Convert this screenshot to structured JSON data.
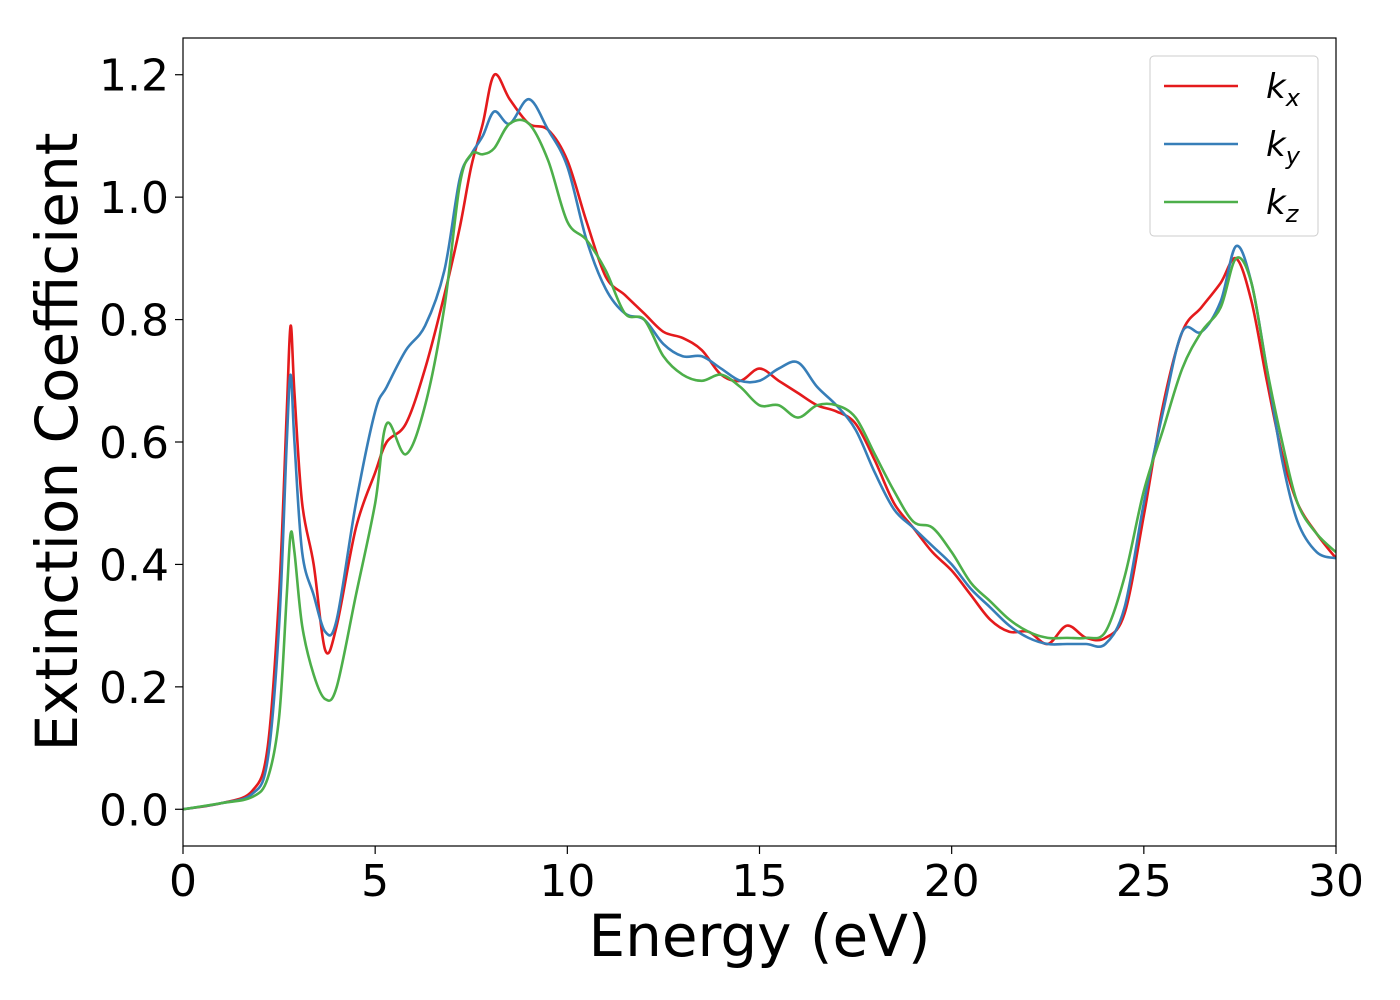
{
  "chart_data": {
    "type": "line",
    "xlabel": "Energy (eV)",
    "ylabel": "Extinction Coefficient",
    "xlim": [
      0,
      30
    ],
    "ylim": [
      -0.06,
      1.26
    ],
    "xticks": [
      "0",
      "5",
      "10",
      "15",
      "20",
      "25",
      "30"
    ],
    "yticks": [
      "0.0",
      "0.2",
      "0.4",
      "0.6",
      "0.8",
      "1.0",
      "1.2"
    ],
    "grid": false,
    "legend_position": "top-right",
    "series": [
      {
        "name": "k_x",
        "label_main": "k",
        "label_sub": "x",
        "color": "#e41a1c",
        "x": [
          0,
          1,
          1.8,
          2.2,
          2.5,
          2.7,
          2.8,
          2.9,
          3.1,
          3.4,
          3.7,
          4.0,
          4.5,
          5.0,
          5.3,
          5.8,
          6.3,
          6.8,
          7.2,
          7.5,
          7.8,
          8.1,
          8.5,
          9.0,
          9.5,
          10.0,
          10.5,
          11.0,
          11.5,
          12.0,
          12.5,
          13.0,
          13.5,
          14.0,
          14.5,
          15.0,
          15.5,
          16.0,
          16.5,
          17.0,
          17.5,
          18.0,
          18.5,
          19.0,
          19.5,
          20.0,
          20.5,
          21.0,
          21.5,
          22.0,
          22.5,
          23.0,
          23.5,
          24.0,
          24.5,
          25.0,
          25.5,
          26.0,
          26.5,
          27.0,
          27.4,
          27.8,
          28.2,
          28.6,
          29.0,
          29.5,
          30.0
        ],
        "y": [
          0.0,
          0.01,
          0.03,
          0.1,
          0.35,
          0.65,
          0.79,
          0.68,
          0.5,
          0.4,
          0.26,
          0.3,
          0.46,
          0.55,
          0.6,
          0.63,
          0.72,
          0.84,
          0.95,
          1.05,
          1.12,
          1.2,
          1.16,
          1.12,
          1.11,
          1.06,
          0.96,
          0.87,
          0.84,
          0.81,
          0.78,
          0.77,
          0.75,
          0.71,
          0.7,
          0.72,
          0.7,
          0.68,
          0.66,
          0.65,
          0.63,
          0.57,
          0.5,
          0.46,
          0.42,
          0.39,
          0.35,
          0.31,
          0.29,
          0.29,
          0.27,
          0.3,
          0.28,
          0.28,
          0.32,
          0.48,
          0.66,
          0.78,
          0.82,
          0.86,
          0.9,
          0.83,
          0.7,
          0.58,
          0.5,
          0.45,
          0.41
        ]
      },
      {
        "name": "k_y",
        "label_main": "k",
        "label_sub": "y",
        "color": "#377eb8",
        "x": [
          0,
          1,
          1.8,
          2.2,
          2.5,
          2.7,
          2.8,
          2.9,
          3.1,
          3.4,
          3.7,
          4.0,
          4.5,
          5.0,
          5.3,
          5.8,
          6.3,
          6.8,
          7.2,
          7.5,
          7.8,
          8.1,
          8.5,
          9.0,
          9.5,
          10.0,
          10.5,
          11.0,
          11.5,
          12.0,
          12.5,
          13.0,
          13.5,
          14.0,
          14.5,
          15.0,
          15.5,
          16.0,
          16.5,
          17.0,
          17.5,
          18.0,
          18.5,
          19.0,
          19.5,
          20.0,
          20.5,
          21.0,
          21.5,
          22.0,
          22.5,
          23.0,
          23.5,
          24.0,
          24.5,
          25.0,
          25.5,
          26.0,
          26.5,
          27.0,
          27.4,
          27.8,
          28.2,
          28.6,
          29.0,
          29.5,
          30.0
        ],
        "y": [
          0.0,
          0.01,
          0.025,
          0.08,
          0.3,
          0.6,
          0.71,
          0.6,
          0.42,
          0.35,
          0.29,
          0.31,
          0.5,
          0.65,
          0.69,
          0.75,
          0.79,
          0.88,
          1.03,
          1.07,
          1.1,
          1.14,
          1.12,
          1.16,
          1.11,
          1.05,
          0.93,
          0.85,
          0.81,
          0.8,
          0.76,
          0.74,
          0.74,
          0.72,
          0.7,
          0.7,
          0.72,
          0.73,
          0.69,
          0.66,
          0.62,
          0.55,
          0.49,
          0.46,
          0.43,
          0.4,
          0.36,
          0.33,
          0.3,
          0.28,
          0.27,
          0.27,
          0.27,
          0.27,
          0.33,
          0.5,
          0.65,
          0.78,
          0.78,
          0.83,
          0.92,
          0.86,
          0.72,
          0.57,
          0.47,
          0.42,
          0.41
        ]
      },
      {
        "name": "k_z",
        "label_main": "k",
        "label_sub": "z",
        "color": "#4daf4a",
        "x": [
          0,
          1,
          1.8,
          2.2,
          2.5,
          2.7,
          2.8,
          2.9,
          3.1,
          3.4,
          3.7,
          4.0,
          4.5,
          5.0,
          5.3,
          5.8,
          6.3,
          6.8,
          7.2,
          7.5,
          7.8,
          8.1,
          8.5,
          9.0,
          9.5,
          10.0,
          10.5,
          11.0,
          11.5,
          12.0,
          12.5,
          13.0,
          13.5,
          14.0,
          14.5,
          15.0,
          15.5,
          16.0,
          16.5,
          17.0,
          17.5,
          18.0,
          18.5,
          19.0,
          19.5,
          20.0,
          20.5,
          21.0,
          21.5,
          22.0,
          22.5,
          23.0,
          23.5,
          24.0,
          24.5,
          25.0,
          25.5,
          26.0,
          26.5,
          27.0,
          27.4,
          27.8,
          28.2,
          28.6,
          29.0,
          29.5,
          30.0
        ],
        "y": [
          0.0,
          0.01,
          0.02,
          0.05,
          0.15,
          0.35,
          0.45,
          0.42,
          0.3,
          0.22,
          0.18,
          0.2,
          0.35,
          0.5,
          0.63,
          0.58,
          0.66,
          0.82,
          1.02,
          1.07,
          1.07,
          1.08,
          1.12,
          1.12,
          1.06,
          0.96,
          0.93,
          0.88,
          0.81,
          0.8,
          0.74,
          0.71,
          0.7,
          0.71,
          0.69,
          0.66,
          0.66,
          0.64,
          0.66,
          0.66,
          0.64,
          0.58,
          0.52,
          0.47,
          0.46,
          0.42,
          0.37,
          0.34,
          0.31,
          0.29,
          0.28,
          0.28,
          0.28,
          0.29,
          0.38,
          0.52,
          0.62,
          0.72,
          0.78,
          0.82,
          0.9,
          0.86,
          0.72,
          0.6,
          0.5,
          0.45,
          0.42
        ]
      }
    ]
  }
}
